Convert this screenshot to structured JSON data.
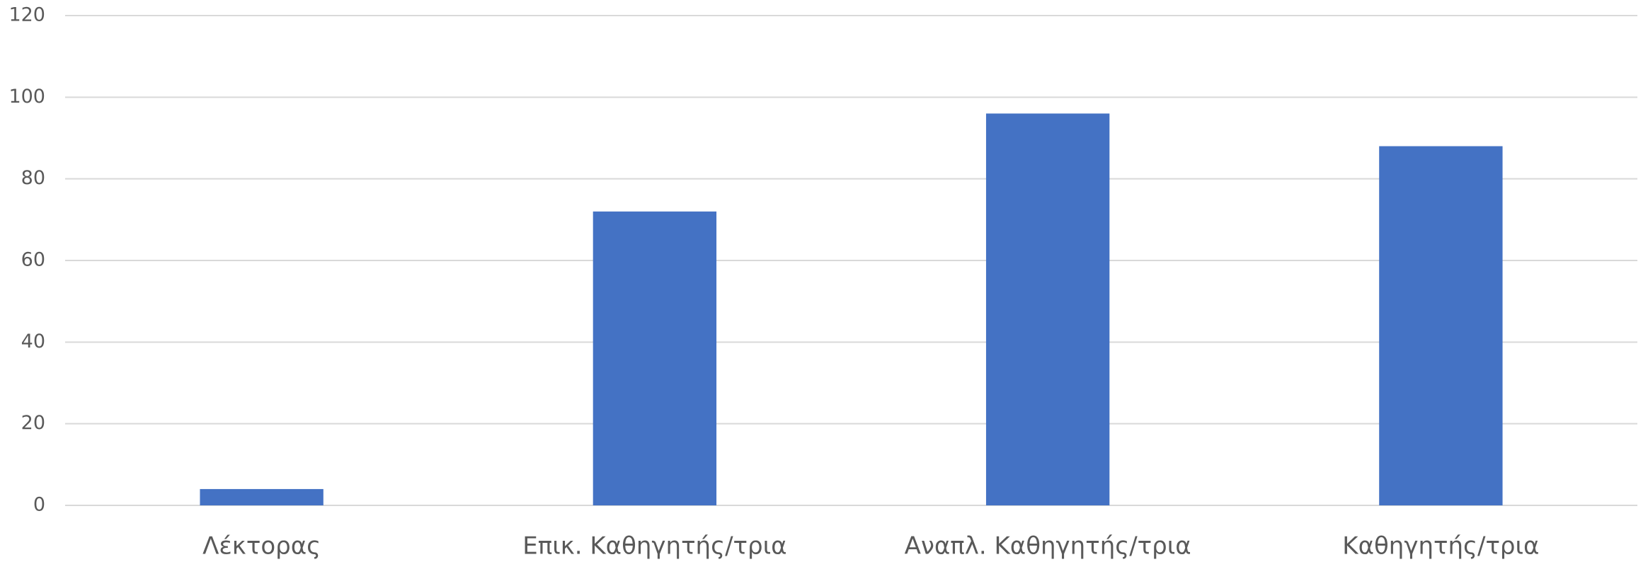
{
  "chart_data": {
    "type": "bar",
    "categories": [
      "Λέκτορας",
      "Επικ. Καθηγητής/τρια",
      "Αναπλ. Καθηγητής/τρια",
      "Καθηγητής/τρια"
    ],
    "values": [
      4,
      72,
      96,
      88
    ],
    "color": "#4472c4",
    "ylim": [
      0,
      120
    ],
    "yticks": [
      0,
      20,
      40,
      60,
      80,
      100,
      120
    ],
    "grid": true
  }
}
